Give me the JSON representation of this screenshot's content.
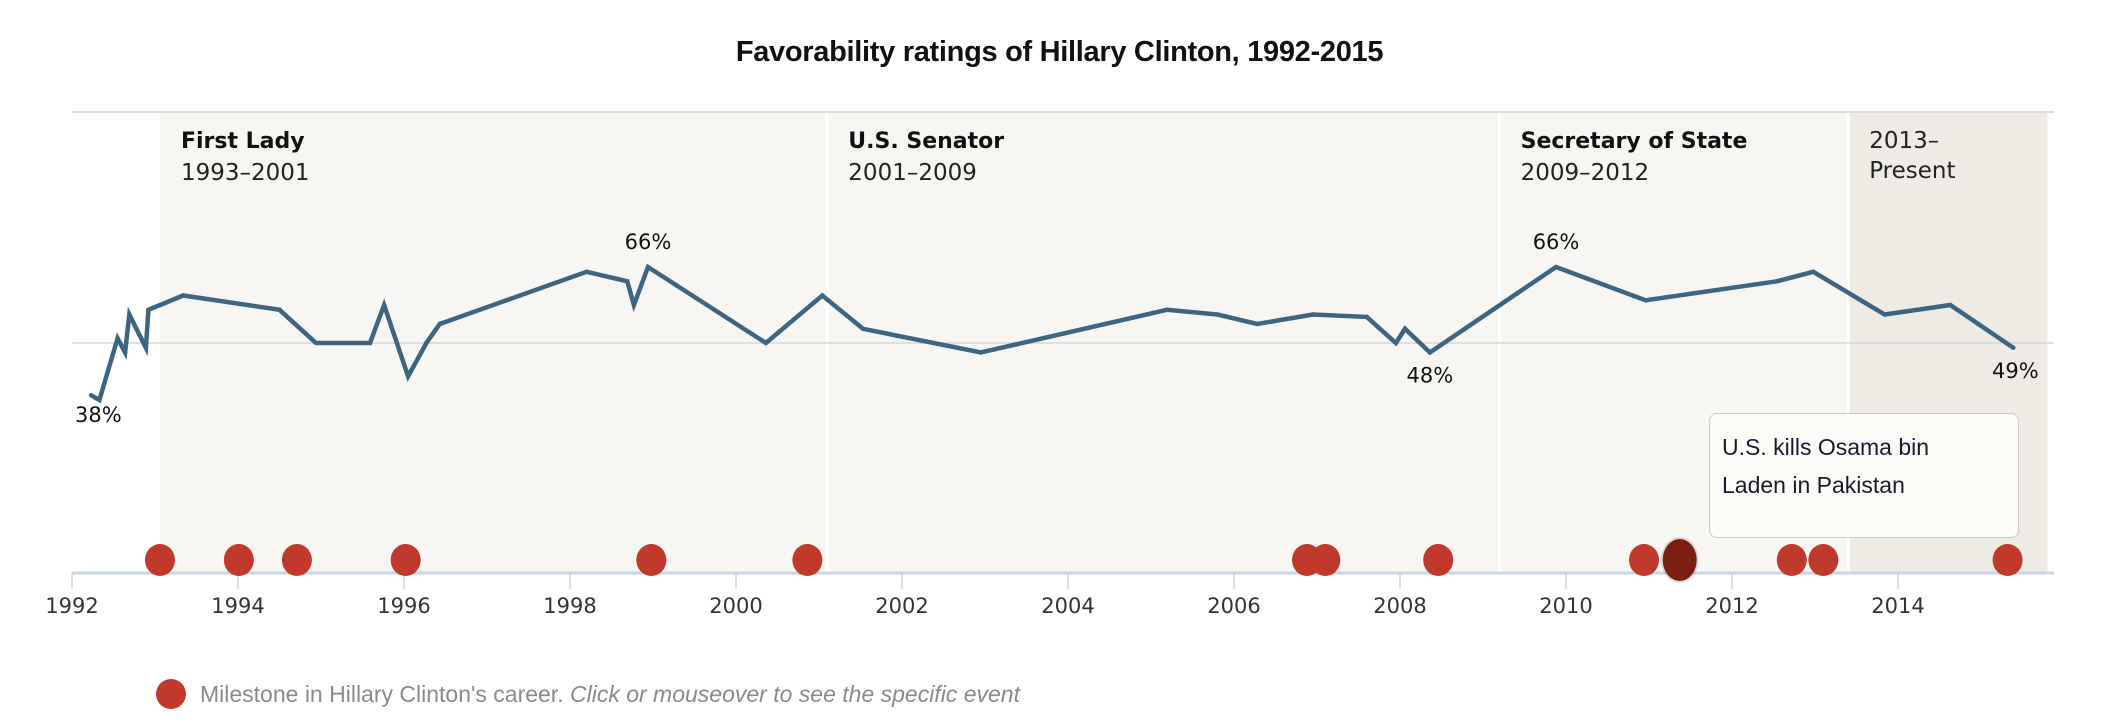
{
  "chart_data": {
    "type": "line",
    "title": "Favorability ratings of Hillary Clinton, 1992-2015",
    "xlabel": "",
    "ylabel": "",
    "xlim": [
      1991.8,
      2015.8
    ],
    "ylim": [
      30,
      79
    ],
    "reference_line": 50,
    "x_ticks": [
      1992,
      1994,
      1996,
      1998,
      2000,
      2002,
      2004,
      2006,
      2008,
      2010,
      2012,
      2014
    ],
    "x_tick_labels": [
      "1992",
      "1994",
      "1996",
      "1998",
      "2000",
      "2002",
      "2004",
      "2006",
      "2008",
      "2010",
      "2012",
      "2014"
    ],
    "series": [
      {
        "name": "Favorability",
        "color": "#3d6581",
        "x": [
          1992.23,
          1992.33,
          1992.55,
          1992.64,
          1992.69,
          1992.89,
          1992.92,
          1993.34,
          1994.5,
          1994.94,
          1995.59,
          1995.76,
          1996.05,
          1996.27,
          1996.43,
          1998.2,
          1998.69,
          1998.77,
          1998.94,
          2000.36,
          2001.04,
          2001.53,
          2002.95,
          2005.19,
          2005.8,
          2006.28,
          2006.95,
          2007.6,
          2007.95,
          2008.06,
          2008.36,
          2009.88,
          2010.96,
          2012.54,
          2012.98,
          2013.84,
          2014.63,
          2015.39
        ],
        "values": [
          39,
          38,
          51,
          48,
          56,
          49,
          57,
          60,
          57,
          50,
          50,
          58,
          43,
          50,
          54,
          65,
          63,
          58,
          66,
          50,
          60,
          53,
          48,
          57,
          56,
          54,
          56,
          55.5,
          50,
          53,
          48,
          66,
          59,
          63,
          65,
          56,
          58,
          49
        ]
      }
    ],
    "point_labels": [
      {
        "x": 1992.33,
        "value": 38,
        "text": "38%",
        "position": "below"
      },
      {
        "x": 1998.94,
        "value": 66,
        "text": "66%",
        "position": "above"
      },
      {
        "x": 2008.36,
        "value": 48,
        "text": "48%",
        "position": "below"
      },
      {
        "x": 2009.88,
        "value": 66,
        "text": "66%",
        "position": "above"
      },
      {
        "x": 2015.39,
        "value": 49,
        "text": "49%",
        "position": "below"
      }
    ],
    "eras": [
      {
        "title": "First Lady",
        "years": "1993–2001",
        "start": 1993.06,
        "end": 2001.1,
        "shade": "#f7f6f3"
      },
      {
        "title": "U.S. Senator",
        "years": "2001–2009",
        "start": 2001.1,
        "end": 2009.2,
        "shade": "#f7f6f3"
      },
      {
        "title": "Secretary of State",
        "years": "2009–2012",
        "start": 2009.2,
        "end": 2013.4,
        "shade": "#f7f6f3"
      },
      {
        "title": "",
        "years": "2013–",
        "years2": "Present",
        "start": 2013.4,
        "end": 2015.8,
        "shade": "#eeebe5"
      }
    ],
    "milestones": {
      "color": "#c0392b",
      "highlight_color": "#7b1f12",
      "x": [
        1993.06,
        1994.01,
        1994.71,
        1996.02,
        1998.98,
        2000.86,
        2006.88,
        2007.1,
        2008.46,
        2010.94,
        2011.37,
        2012.72,
        2013.1,
        2015.32
      ],
      "highlighted_index": 10
    },
    "legend": {
      "placement": "bottom-left",
      "text": "Milestone in Hillary Clinton's career.",
      "hint": "Click or mouseover to see the specific event"
    },
    "tooltip": {
      "text": "U.S. kills Osama bin Laden in Pakistan",
      "line1": "U.S. kills Osama bin",
      "line2": "Laden in Pakistan"
    }
  }
}
